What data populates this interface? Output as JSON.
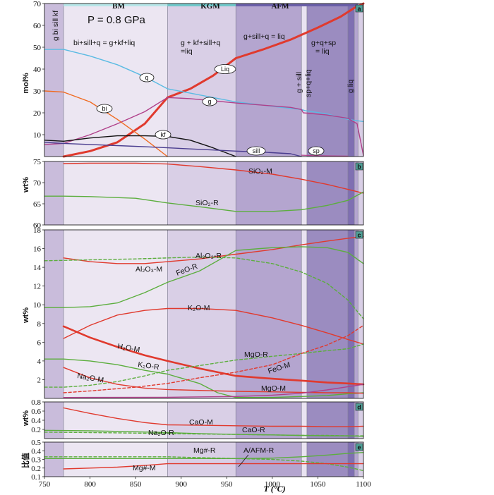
{
  "figure": {
    "pressure_label": "P = 0.8 GPa",
    "xlabel": "T (°C)",
    "x_range": [
      750,
      1100
    ],
    "x_ticks": [
      750,
      800,
      850,
      900,
      950,
      1000,
      1050,
      1100
    ],
    "boundaries": [
      771,
      885,
      960,
      1032,
      1038,
      1083,
      1090,
      1094
    ],
    "zones": [
      {
        "name": "BM",
        "range": [
          771,
          885
        ]
      },
      {
        "name": "KGM",
        "range": [
          885,
          960
        ]
      },
      {
        "name": "AFM",
        "range": [
          960,
          1094
        ]
      }
    ],
    "zone_colors": {
      "BM": "#b8e6e8",
      "KGM": "#6fc7c9",
      "AFM": "#6a5fa8"
    },
    "field_colors": [
      "#c9bcdb",
      "#ece6f2",
      "#d9cfe6",
      "#b4a5cf",
      "#e9e3f1",
      "#9b8cc0",
      "#7f6fb2",
      "#b4a5cf",
      "#d9cfe6"
    ]
  },
  "chart_data": [
    {
      "panel": "a",
      "type": "line",
      "ylabel": "mol%",
      "ylim": [
        0,
        70
      ],
      "yticks": [
        10,
        20,
        30,
        40,
        50,
        60,
        70
      ],
      "reaction_labels": [
        "g bi sill kf",
        "bi+sill+q = g+kf+liq",
        "g + kf+sill+q",
        "=liq",
        "g+sill+q = liq",
        "g+q+sp",
        "= liq",
        "g + sill",
        "sp+q+liq",
        "g liq"
      ],
      "series": [
        {
          "name": "Liq",
          "color": "#e03a2e",
          "width": 3,
          "x": [
            771,
            800,
            830,
            860,
            885,
            910,
            935,
            960,
            990,
            1020,
            1050,
            1075,
            1090,
            1100
          ],
          "y": [
            0,
            2.5,
            6.5,
            15,
            27,
            31,
            37,
            45,
            49,
            53.5,
            59,
            64,
            68,
            71
          ]
        },
        {
          "name": "q",
          "color": "#5bbbe3",
          "width": 1.4,
          "x": [
            750,
            771,
            800,
            830,
            860,
            885,
            910,
            935,
            960,
            990,
            1020,
            1032,
            1036,
            1060,
            1083,
            1100
          ],
          "y": [
            49,
            49,
            46,
            42,
            36.5,
            31,
            29,
            27,
            25,
            23.5,
            22,
            21.5,
            21,
            19.5,
            17,
            16
          ]
        },
        {
          "name": "g",
          "color": "#b0408a",
          "width": 1.4,
          "x": [
            750,
            771,
            800,
            830,
            860,
            885,
            910,
            935,
            960,
            990,
            1020,
            1032,
            1034,
            1060,
            1083,
            1093,
            1100
          ],
          "y": [
            5.5,
            6,
            10,
            15,
            20.5,
            27,
            26.5,
            25.5,
            24.5,
            23.5,
            22.5,
            21.5,
            20,
            19,
            17.5,
            15,
            0.5
          ]
        },
        {
          "name": "bi",
          "color": "#f06b21",
          "width": 1.4,
          "x": [
            750,
            771,
            800,
            830,
            860,
            885
          ],
          "y": [
            30,
            29.5,
            25,
            17,
            8,
            0
          ]
        },
        {
          "name": "kf",
          "color": "#111111",
          "width": 1.4,
          "x": [
            750,
            771,
            800,
            830,
            860,
            885,
            910,
            935,
            960
          ],
          "y": [
            7.5,
            7,
            8.5,
            9.5,
            9.5,
            9.2,
            7.5,
            4,
            0
          ]
        },
        {
          "name": "sill",
          "color": "#4a3d8f",
          "width": 1.4,
          "x": [
            750,
            771,
            800,
            830,
            860,
            885,
            910,
            935,
            960,
            990,
            1020,
            1032
          ],
          "y": [
            6.5,
            6,
            5.5,
            5,
            4.5,
            4,
            3.5,
            3,
            2.5,
            2,
            1.3,
            0
          ]
        },
        {
          "name": "sp",
          "color": "#b0408a",
          "width": 1.2,
          "x": [
            1032,
            1050,
            1083
          ],
          "y": [
            0.6,
            0.4,
            0.2
          ]
        }
      ]
    },
    {
      "panel": "b",
      "type": "line",
      "ylabel": "wt%",
      "ylim": [
        60,
        75
      ],
      "yticks": [
        60,
        65,
        70,
        75
      ],
      "series": [
        {
          "name": "SiO₂-M",
          "color": "#e03a2e",
          "width": 1.4,
          "x": [
            771,
            800,
            850,
            885,
            920,
            960,
            1000,
            1032,
            1060,
            1083,
            1100
          ],
          "y": [
            74.5,
            74.6,
            74.6,
            74.4,
            73.8,
            73,
            72,
            70.8,
            69.6,
            68.4,
            67.5
          ]
        },
        {
          "name": "SiO₂-R",
          "color": "#5cae3e",
          "width": 1.4,
          "x": [
            750,
            771,
            800,
            850,
            885,
            920,
            960,
            1000,
            1032,
            1060,
            1083,
            1100
          ],
          "y": [
            66.8,
            66.8,
            66.7,
            66.3,
            65.2,
            64.3,
            63.2,
            63.2,
            63.6,
            64.6,
            65.8,
            67.8
          ]
        }
      ]
    },
    {
      "panel": "c",
      "type": "line",
      "ylabel": "wt%",
      "ylim": [
        0,
        18
      ],
      "yticks": [
        2,
        4,
        6,
        8,
        10,
        12,
        14,
        16,
        18
      ],
      "series": [
        {
          "name": "Al₂O₃-M",
          "color": "#e03a2e",
          "width": 1.4,
          "x": [
            771,
            800,
            830,
            860,
            885,
            920,
            960,
            1000,
            1032,
            1060,
            1083,
            1100
          ],
          "y": [
            15,
            14.6,
            14.4,
            14.4,
            14.6,
            14.9,
            15.4,
            15.9,
            16.4,
            16.8,
            17.1,
            17.3
          ]
        },
        {
          "name": "Al₂O₃-R",
          "color": "#5cae3e",
          "width": 1.4,
          "dashed": true,
          "x": [
            750,
            800,
            850,
            885,
            920,
            960,
            1000,
            1032,
            1060,
            1083,
            1100
          ],
          "y": [
            14.7,
            14.8,
            14.9,
            15,
            15.1,
            15,
            14.4,
            13.5,
            12.3,
            10.5,
            8.5
          ]
        },
        {
          "name": "FeO-R",
          "color": "#5cae3e",
          "width": 1.4,
          "x": [
            750,
            771,
            800,
            830,
            860,
            885,
            920,
            960,
            1000,
            1032,
            1060,
            1083,
            1100
          ],
          "y": [
            9.7,
            9.7,
            9.8,
            10.2,
            11.3,
            12.4,
            13.6,
            15.8,
            16.1,
            16.2,
            16.1,
            15.6,
            14.4
          ]
        },
        {
          "name": "K₂O-M",
          "color": "#e03a2e",
          "width": 1.4,
          "x": [
            771,
            800,
            830,
            860,
            885,
            920,
            960,
            1000,
            1032,
            1060,
            1083,
            1100
          ],
          "y": [
            6.4,
            7.8,
            8.9,
            9.4,
            9.6,
            9.6,
            9.4,
            8.6,
            7.8,
            7.0,
            6.3,
            5.8
          ]
        },
        {
          "name": "H₂O-M",
          "color": "#e03a2e",
          "width": 2.6,
          "x": [
            771,
            800,
            830,
            860,
            885,
            920,
            960,
            1000,
            1032,
            1060,
            1083,
            1100
          ],
          "y": [
            7.7,
            6.5,
            5.5,
            4.6,
            4,
            3.2,
            2.4,
            2.1,
            1.9,
            1.7,
            1.6,
            1.5
          ]
        },
        {
          "name": "K₂O-R",
          "color": "#5cae3e",
          "width": 1.4,
          "x": [
            750,
            771,
            800,
            830,
            860,
            885,
            920,
            940,
            960,
            1000,
            1032,
            1060,
            1083,
            1100
          ],
          "y": [
            4.2,
            4.2,
            4,
            3.6,
            3,
            2.6,
            1.6,
            0.6,
            0.1,
            0.1,
            0.2,
            0.3,
            0.5,
            0.6
          ]
        },
        {
          "name": "MgO-R",
          "color": "#5cae3e",
          "width": 1.4,
          "dashed": true,
          "x": [
            750,
            771,
            800,
            830,
            860,
            885,
            920,
            960,
            1000,
            1032,
            1060,
            1083,
            1100
          ],
          "y": [
            1.2,
            1.2,
            1.4,
            1.8,
            2.4,
            3,
            3.5,
            4.1,
            4.5,
            4.8,
            5.1,
            5.3,
            5.8
          ]
        },
        {
          "name": "FeO-M",
          "color": "#e03a2e",
          "width": 1.4,
          "dashed": true,
          "x": [
            771,
            800,
            850,
            885,
            920,
            960,
            1000,
            1032,
            1060,
            1083,
            1100
          ],
          "y": [
            0.6,
            0.8,
            1.2,
            1.6,
            2.2,
            2.8,
            3.6,
            4.8,
            5.7,
            6.7,
            7.8
          ]
        },
        {
          "name": "Na₂O-M",
          "color": "#e03a2e",
          "width": 1.4,
          "x": [
            771,
            800,
            830,
            860,
            885,
            920,
            960,
            1000,
            1032,
            1060,
            1083,
            1100
          ],
          "y": [
            3.3,
            2.2,
            1.5,
            1.1,
            0.95,
            0.85,
            0.75,
            0.7,
            0.65,
            0.6,
            0.6,
            0.55
          ]
        },
        {
          "name": "MgO-M",
          "color": "#b0408a",
          "width": 1.4,
          "x": [
            771,
            885,
            960,
            1000,
            1032,
            1060,
            1083,
            1100
          ],
          "y": [
            0.1,
            0.12,
            0.2,
            0.35,
            0.55,
            0.9,
            1.25,
            1.5
          ]
        }
      ]
    },
    {
      "panel": "d",
      "type": "line",
      "ylabel": "wt%",
      "ylim": [
        0,
        0.8
      ],
      "yticks": [
        0.2,
        0.4,
        0.6,
        0.8
      ],
      "series": [
        {
          "name": "CaO-M",
          "color": "#e03a2e",
          "width": 1.4,
          "x": [
            771,
            800,
            830,
            860,
            885,
            920,
            960,
            1000,
            1032,
            1060,
            1083,
            1100
          ],
          "y": [
            0.67,
            0.55,
            0.44,
            0.35,
            0.3,
            0.29,
            0.28,
            0.27,
            0.27,
            0.26,
            0.26,
            0.27
          ]
        },
        {
          "name": "Na₂O-R",
          "color": "#5cae3e",
          "width": 1.4,
          "x": [
            750,
            800,
            850,
            885,
            920,
            960,
            1000,
            1032,
            1060,
            1083,
            1100
          ],
          "y": [
            0.18,
            0.17,
            0.15,
            0.13,
            0.11,
            0.09,
            0.08,
            0.07,
            0.06,
            0.06,
            0.05
          ]
        },
        {
          "name": "CaO-R",
          "color": "#5cae3e",
          "width": 1.4,
          "dashed": true,
          "x": [
            750,
            800,
            850,
            885,
            920,
            960,
            1000,
            1032,
            1060,
            1083,
            1100
          ],
          "y": [
            0.14,
            0.13,
            0.12,
            0.11,
            0.1,
            0.09,
            0.08,
            0.07,
            0.07,
            0.06,
            0.06
          ]
        }
      ]
    },
    {
      "panel": "e",
      "type": "line",
      "ylabel": "比值",
      "ylim": [
        0.1,
        0.5
      ],
      "yticks": [
        0.1,
        0.2,
        0.3,
        0.4,
        0.5
      ],
      "series": [
        {
          "name": "Mg#-R",
          "color": "#5cae3e",
          "width": 1.4,
          "x": [
            750,
            800,
            850,
            885,
            920,
            960,
            1000,
            1032,
            1060,
            1083,
            1100
          ],
          "y": [
            0.31,
            0.31,
            0.31,
            0.31,
            0.31,
            0.31,
            0.315,
            0.33,
            0.35,
            0.37,
            0.38
          ]
        },
        {
          "name": "A/AFM-R",
          "color": "#5cae3e",
          "width": 1.4,
          "dashed": true,
          "x": [
            750,
            800,
            850,
            885,
            920,
            960,
            1000,
            1032,
            1060,
            1083,
            1100
          ],
          "y": [
            0.33,
            0.33,
            0.33,
            0.33,
            0.32,
            0.31,
            0.3,
            0.28,
            0.25,
            0.21,
            0.17
          ]
        },
        {
          "name": "Mg#-M",
          "color": "#e03a2e",
          "width": 1.4,
          "x": [
            771,
            800,
            830,
            860,
            885,
            920,
            960,
            1000,
            1032,
            1060,
            1083,
            1100
          ],
          "y": [
            0.19,
            0.2,
            0.21,
            0.23,
            0.25,
            0.25,
            0.25,
            0.25,
            0.25,
            0.25,
            0.25,
            0.25
          ]
        }
      ]
    }
  ]
}
